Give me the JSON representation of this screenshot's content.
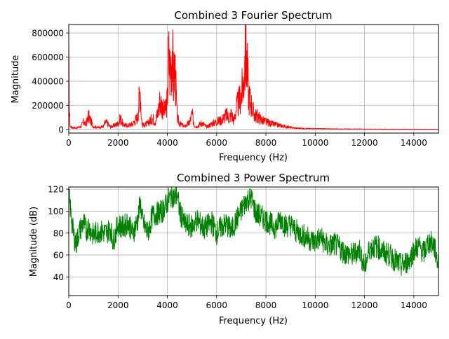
{
  "chart_data": [
    {
      "type": "line",
      "title": "Combined 3 Fourier Spectrum",
      "xlabel": "Frequency (Hz)",
      "ylabel": "Magnitude",
      "xlim": [
        0,
        15000
      ],
      "ylim": [
        -30000,
        870000
      ],
      "grid": true,
      "color": "#ff0000",
      "xticks": [
        "0",
        "2000",
        "4000",
        "6000",
        "8000",
        "10000",
        "12000",
        "14000"
      ],
      "yticks": [
        "0",
        "200000",
        "400000",
        "600000",
        "800000"
      ],
      "xtick_values": [
        0,
        2000,
        4000,
        6000,
        8000,
        10000,
        12000,
        14000
      ],
      "ytick_values": [
        0,
        200000,
        400000,
        600000,
        800000
      ],
      "series": [
        {
          "x": [
            0,
            30,
            60,
            150,
            300,
            500,
            600,
            700,
            800,
            1000,
            1200,
            1400,
            1500,
            1700,
            2000,
            2100,
            2200,
            2400,
            2600,
            2800,
            2850,
            2900,
            2950,
            3000,
            3200,
            3400,
            3500,
            3600,
            3700,
            3800,
            3900,
            4000,
            4050,
            4100,
            4150,
            4200,
            4250,
            4300,
            4350,
            4400,
            4500,
            4700,
            4900,
            5000,
            5050,
            5100,
            5200,
            5400,
            5600,
            5800,
            6000,
            6200,
            6400,
            6500,
            6600,
            6700,
            6800,
            6900,
            7000,
            7100,
            7150,
            7200,
            7250,
            7300,
            7400,
            7500,
            7600,
            7700,
            7800,
            8000,
            8200,
            8400,
            8600,
            8800,
            9000,
            9200,
            9500,
            10000,
            10500,
            11000,
            12000,
            13000,
            14000,
            15000
          ],
          "values": [
            620000,
            160000,
            30000,
            20000,
            15000,
            30000,
            80000,
            50000,
            140000,
            30000,
            20000,
            30000,
            80000,
            25000,
            60000,
            120000,
            50000,
            40000,
            60000,
            130000,
            300000,
            430000,
            120000,
            40000,
            60000,
            120000,
            80000,
            160000,
            300000,
            230000,
            180000,
            300000,
            780000,
            620000,
            690000,
            840000,
            450000,
            700000,
            400000,
            120000,
            60000,
            30000,
            70000,
            160000,
            100000,
            40000,
            30000,
            70000,
            25000,
            60000,
            80000,
            100000,
            150000,
            120000,
            160000,
            90000,
            230000,
            280000,
            360000,
            510000,
            750000,
            810000,
            600000,
            350000,
            270000,
            170000,
            140000,
            130000,
            100000,
            80000,
            60000,
            50000,
            40000,
            30000,
            20000,
            15000,
            10000,
            8000,
            6000,
            5000,
            4000,
            3000,
            2500,
            2000
          ]
        }
      ]
    },
    {
      "type": "line",
      "title": "Combined 3 Power Spectrum",
      "xlabel": "Frequency (Hz)",
      "ylabel": "Magnitude (dB)",
      "xlim": [
        0,
        15000
      ],
      "ylim": [
        23,
        122
      ],
      "grid": true,
      "color": "#008000",
      "xticks": [
        "0",
        "2000",
        "4000",
        "6000",
        "8000",
        "10000",
        "12000",
        "14000"
      ],
      "yticks": [
        "40",
        "60",
        "80",
        "100",
        "120"
      ],
      "xtick_values": [
        0,
        2000,
        4000,
        6000,
        8000,
        10000,
        12000,
        14000
      ],
      "ytick_values": [
        40,
        60,
        80,
        100,
        120
      ],
      "series": [
        {
          "x": [
            0,
            100,
            200,
            300,
            400,
            500,
            600,
            700,
            800,
            1000,
            1200,
            1500,
            1700,
            1800,
            2000,
            2200,
            2400,
            2600,
            2800,
            2900,
            3000,
            3200,
            3400,
            3600,
            3800,
            4000,
            4100,
            4200,
            4300,
            4400,
            4500,
            4700,
            5000,
            5200,
            5500,
            5800,
            6000,
            6200,
            6400,
            6600,
            6800,
            7000,
            7200,
            7400,
            7600,
            7800,
            8000,
            8200,
            8400,
            8600,
            8800,
            9000,
            9200,
            9500,
            9800,
            10000,
            10200,
            10500,
            10800,
            11000,
            11200,
            11500,
            11800,
            12000,
            12200,
            12500,
            12800,
            13000,
            13200,
            13500,
            13800,
            14000,
            14200,
            14400,
            14600,
            14800,
            15000
          ],
          "values": [
            115,
            95,
            78,
            70,
            80,
            85,
            90,
            82,
            86,
            78,
            82,
            80,
            84,
            72,
            88,
            85,
            90,
            80,
            92,
            108,
            90,
            80,
            96,
            98,
            100,
            108,
            113,
            114,
            112,
            115,
            100,
            88,
            86,
            92,
            84,
            90,
            80,
            86,
            88,
            82,
            92,
            100,
            110,
            112,
            98,
            95,
            92,
            88,
            85,
            94,
            86,
            88,
            82,
            78,
            74,
            72,
            76,
            68,
            70,
            66,
            62,
            60,
            65,
            48,
            66,
            68,
            62,
            60,
            56,
            50,
            55,
            64,
            68,
            62,
            72,
            70,
            52
          ]
        }
      ]
    }
  ]
}
